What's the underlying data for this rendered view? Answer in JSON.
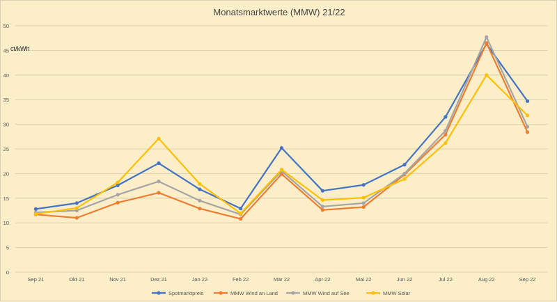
{
  "chart_data": {
    "type": "line",
    "title": "Monatsmarktwerte (MMW) 21/22",
    "ylabel": "ct/kWh",
    "xlabel": "",
    "ylim": [
      0,
      50
    ],
    "yticks": [
      0,
      5,
      10,
      15,
      20,
      25,
      30,
      35,
      40,
      45,
      50
    ],
    "grid": true,
    "legend_position": "bottom",
    "categories": [
      "Sep 21",
      "Okt 21",
      "Nov 21",
      "Dez 21",
      "Jan 22",
      "Feb 22",
      "Mär 22",
      "Apr 22",
      "Mai 22",
      "Jun 22",
      "Jul 22",
      "Aug 22",
      "Sep 22"
    ],
    "series": [
      {
        "name": "Spotmarktpreis",
        "color": "#4472c4",
        "values": [
          12.8,
          14.0,
          17.6,
          22.1,
          16.8,
          12.9,
          25.2,
          16.5,
          17.7,
          21.8,
          31.5,
          46.3,
          34.7
        ]
      },
      {
        "name": "MMW Wind an Land",
        "color": "#ed7d31",
        "values": [
          11.7,
          11.0,
          14.1,
          16.1,
          12.9,
          10.8,
          19.9,
          12.6,
          13.2,
          19.8,
          27.9,
          46.5,
          28.4
        ]
      },
      {
        "name": "MMW Wind auf See",
        "color": "#a5a5a5",
        "values": [
          12.1,
          12.5,
          15.7,
          18.4,
          14.5,
          11.7,
          20.5,
          13.3,
          14.0,
          20.0,
          28.7,
          47.7,
          29.5
        ]
      },
      {
        "name": "MMW Solar",
        "color": "#ffc000",
        "values": [
          11.8,
          13.0,
          18.2,
          27.1,
          17.9,
          11.9,
          20.8,
          14.6,
          15.1,
          18.9,
          26.2,
          40.0,
          31.8
        ]
      }
    ]
  }
}
